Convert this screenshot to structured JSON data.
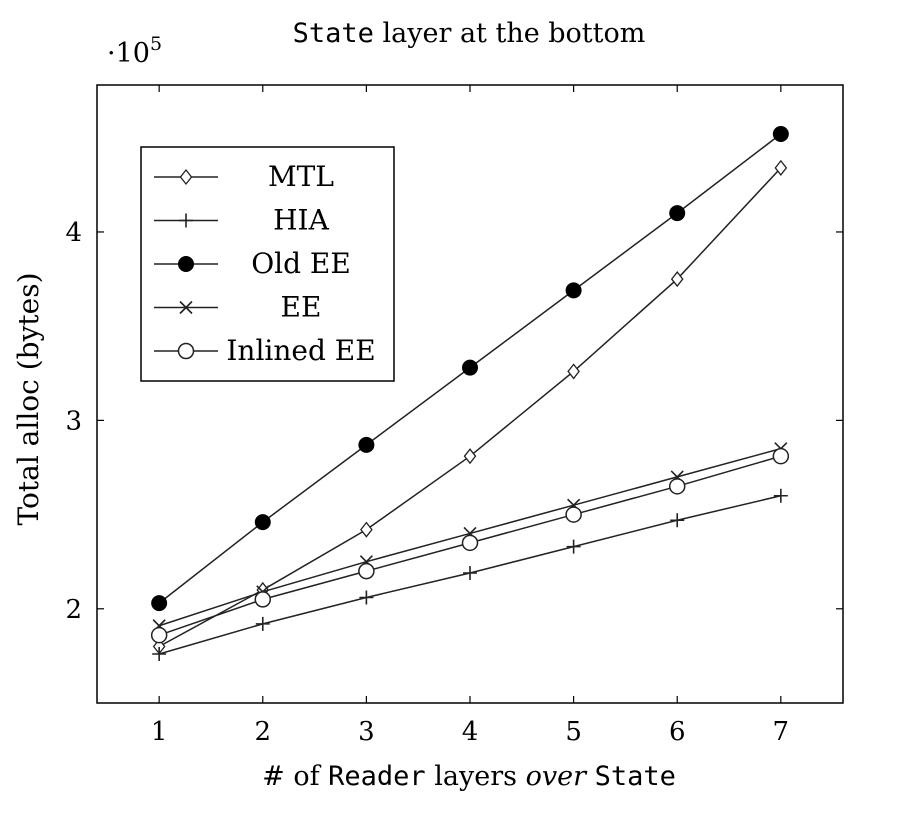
{
  "chart_data": {
    "type": "line",
    "title_parts": [
      {
        "text": "State",
        "style": "mono"
      },
      {
        "text": " layer at the bottom",
        "style": "serif"
      }
    ],
    "xlabel_parts": [
      {
        "text": "# of ",
        "style": "serif"
      },
      {
        "text": "Reader",
        "style": "mono"
      },
      {
        "text": " layers ",
        "style": "serif"
      },
      {
        "text": "over",
        "style": "italic"
      },
      {
        "text": " ",
        "style": "serif"
      },
      {
        "text": "State",
        "style": "mono"
      }
    ],
    "ylabel": "Total alloc (bytes)",
    "y_scale_label": "·10",
    "y_scale_exponent": "5",
    "x": [
      1,
      2,
      3,
      4,
      5,
      6,
      7
    ],
    "xlim": [
      0.4,
      7.6
    ],
    "ylim": [
      1.5,
      4.78
    ],
    "xticks": [
      1,
      2,
      3,
      4,
      5,
      6,
      7
    ],
    "yticks": [
      2,
      3,
      4
    ],
    "y_unit_multiplier": 100000,
    "grid": false,
    "legend_position": "top-left",
    "series": [
      {
        "name": "MTL",
        "marker": "diamond",
        "values": [
          1.8,
          2.1,
          2.42,
          2.81,
          3.26,
          3.75,
          4.34
        ]
      },
      {
        "name": "HIA",
        "marker": "plus",
        "values": [
          1.76,
          1.92,
          2.06,
          2.19,
          2.33,
          2.47,
          2.6
        ]
      },
      {
        "name": "Old EE",
        "marker": "filled-circle",
        "values": [
          2.03,
          2.46,
          2.87,
          3.28,
          3.69,
          4.1,
          4.52
        ]
      },
      {
        "name": "EE",
        "marker": "cross",
        "values": [
          1.91,
          2.09,
          2.25,
          2.4,
          2.55,
          2.7,
          2.85
        ]
      },
      {
        "name": "Inlined EE",
        "marker": "open-circle",
        "values": [
          1.86,
          2.05,
          2.2,
          2.35,
          2.5,
          2.65,
          2.81
        ]
      }
    ]
  }
}
